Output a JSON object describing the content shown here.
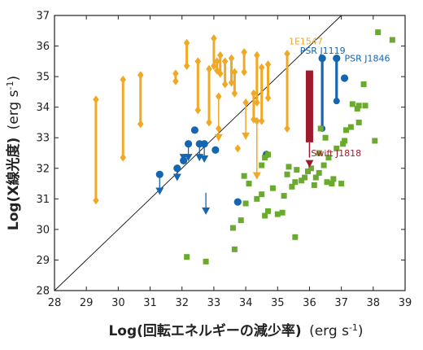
{
  "chart_data": {
    "type": "scatter",
    "xlabel": "Log(回転エネルギーの減少率) (erg s-1)",
    "ylabel": "Log(X線光度) (erg s-1)",
    "xlabel_parts": {
      "main": "Log(回転エネルギーの減少率)",
      "unit": "(erg s",
      "exp": "-1",
      "close": ")"
    },
    "ylabel_parts": {
      "main": "Log(X線光度)",
      "unit": "(erg s",
      "exp": "-1",
      "close": ")"
    },
    "xlim": [
      28,
      39
    ],
    "ylim": [
      28,
      37
    ],
    "xticks": [
      28,
      29,
      30,
      31,
      32,
      33,
      34,
      35,
      36,
      37,
      38,
      39
    ],
    "yticks": [
      28,
      29,
      30,
      31,
      32,
      33,
      34,
      35,
      36,
      37
    ],
    "colors": {
      "orange": "#f0a925",
      "blue": "#1565b0",
      "green": "#6aaa2e",
      "red": "#9e1a2e"
    },
    "diagonal": [
      [
        28,
        28
      ],
      [
        37,
        37
      ]
    ],
    "annotations": [
      {
        "text": "1E1547",
        "x": 35.35,
        "y": 36.05,
        "color": "#f0a925"
      },
      {
        "text": "PSR J1119",
        "x": 35.7,
        "y": 35.75,
        "color": "#1565b0"
      },
      {
        "text": "PSR J1846",
        "x": 37.1,
        "y": 35.5,
        "color": "#1565b0"
      },
      {
        "text": "Swift J1818",
        "x": 36.05,
        "y": 32.4,
        "color": "#9e1a2e"
      }
    ],
    "series": [
      {
        "marker": "range-diamond",
        "color": "#f0a925",
        "ranges": [
          [
            29.3,
            30.95,
            34.25
          ],
          [
            30.15,
            32.35,
            34.9
          ],
          [
            30.7,
            33.45,
            35.05
          ],
          [
            31.8,
            34.85,
            35.1
          ],
          [
            32.15,
            35.35,
            36.1
          ],
          [
            32.5,
            33.9,
            35.5
          ],
          [
            32.85,
            33.5,
            35.25
          ],
          [
            33.0,
            35.35,
            36.25
          ],
          [
            33.1,
            35.2,
            35.5
          ],
          [
            33.2,
            35.1,
            35.7
          ],
          [
            33.35,
            34.75,
            35.5
          ],
          [
            33.55,
            34.8,
            35.6
          ],
          [
            33.65,
            34.45,
            35.15
          ],
          [
            33.95,
            35.15,
            35.8
          ],
          [
            34.25,
            33.6,
            34.45
          ],
          [
            34.35,
            34.15,
            35.7
          ],
          [
            34.5,
            33.55,
            35.3
          ],
          [
            34.7,
            34.3,
            35.4
          ],
          [
            35.3,
            33.3,
            35.75
          ]
        ],
        "singles": [
          [
            33.15,
            33.3
          ],
          [
            33.75,
            32.65
          ]
        ],
        "down_arrows": [
          [
            34.0,
            34.15,
            33.05
          ],
          [
            34.35,
            33.55,
            31.75
          ],
          [
            33.15,
            34.35,
            33.0
          ]
        ]
      },
      {
        "marker": "circle",
        "color": "#1565b0",
        "points": [
          [
            31.3,
            31.8
          ],
          [
            31.85,
            32.0
          ],
          [
            32.05,
            32.25
          ],
          [
            32.2,
            32.8
          ],
          [
            32.4,
            33.25
          ],
          [
            32.55,
            32.8
          ],
          [
            32.7,
            32.8
          ],
          [
            33.05,
            32.6
          ],
          [
            33.75,
            30.9
          ],
          [
            34.65,
            32.45
          ],
          [
            37.1,
            34.95
          ]
        ],
        "down_arrows": [
          [
            31.3,
            31.8,
            31.25
          ],
          [
            31.85,
            32.0,
            31.7
          ],
          [
            32.05,
            32.25,
            32.35
          ],
          [
            32.2,
            32.8,
            32.35
          ],
          [
            32.55,
            32.8,
            32.35
          ],
          [
            32.7,
            32.8,
            32.3
          ],
          [
            32.75,
            31.2,
            30.6
          ]
        ],
        "ranges": [
          [
            36.4,
            33.3,
            35.6
          ],
          [
            36.85,
            34.2,
            35.6
          ]
        ]
      },
      {
        "marker": "square",
        "color": "#6aaa2e",
        "points": [
          [
            32.15,
            29.1
          ],
          [
            32.75,
            28.95
          ],
          [
            33.65,
            29.35
          ],
          [
            33.6,
            30.05
          ],
          [
            33.85,
            30.3
          ],
          [
            34.0,
            30.85
          ],
          [
            34.1,
            31.5
          ],
          [
            33.95,
            31.75
          ],
          [
            34.35,
            31.0
          ],
          [
            34.5,
            31.15
          ],
          [
            34.6,
            30.45
          ],
          [
            34.7,
            30.6
          ],
          [
            34.85,
            31.35
          ],
          [
            34.5,
            32.1
          ],
          [
            34.7,
            32.45
          ],
          [
            34.6,
            32.35
          ],
          [
            35.0,
            30.5
          ],
          [
            35.15,
            30.55
          ],
          [
            35.2,
            31.1
          ],
          [
            35.3,
            31.8
          ],
          [
            35.35,
            32.05
          ],
          [
            35.45,
            31.4
          ],
          [
            35.55,
            31.55
          ],
          [
            35.6,
            31.95
          ],
          [
            35.55,
            29.75
          ],
          [
            35.75,
            31.6
          ],
          [
            35.85,
            31.7
          ],
          [
            35.95,
            31.9
          ],
          [
            36.05,
            32.0
          ],
          [
            36.15,
            31.45
          ],
          [
            36.2,
            31.7
          ],
          [
            36.3,
            31.85
          ],
          [
            36.3,
            32.5
          ],
          [
            36.35,
            33.3
          ],
          [
            36.45,
            32.1
          ],
          [
            36.55,
            31.55
          ],
          [
            36.5,
            33.0
          ],
          [
            36.6,
            32.35
          ],
          [
            36.7,
            31.5
          ],
          [
            36.75,
            31.65
          ],
          [
            36.85,
            32.65
          ],
          [
            37.0,
            31.5
          ],
          [
            37.05,
            32.8
          ],
          [
            37.1,
            32.9
          ],
          [
            37.15,
            33.25
          ],
          [
            37.3,
            33.35
          ],
          [
            37.35,
            34.1
          ],
          [
            37.5,
            33.95
          ],
          [
            37.55,
            34.05
          ],
          [
            37.55,
            33.5
          ],
          [
            37.7,
            34.75
          ],
          [
            37.75,
            34.05
          ],
          [
            38.05,
            32.9
          ],
          [
            38.15,
            36.45
          ],
          [
            38.6,
            36.2
          ]
        ]
      },
      {
        "marker": "bar-down-arrow",
        "color": "#9e1a2e",
        "bar": [
          36.0,
          32.85,
          35.2
        ],
        "arrow": [
          36.0,
          32.85,
          32.15
        ]
      }
    ]
  }
}
